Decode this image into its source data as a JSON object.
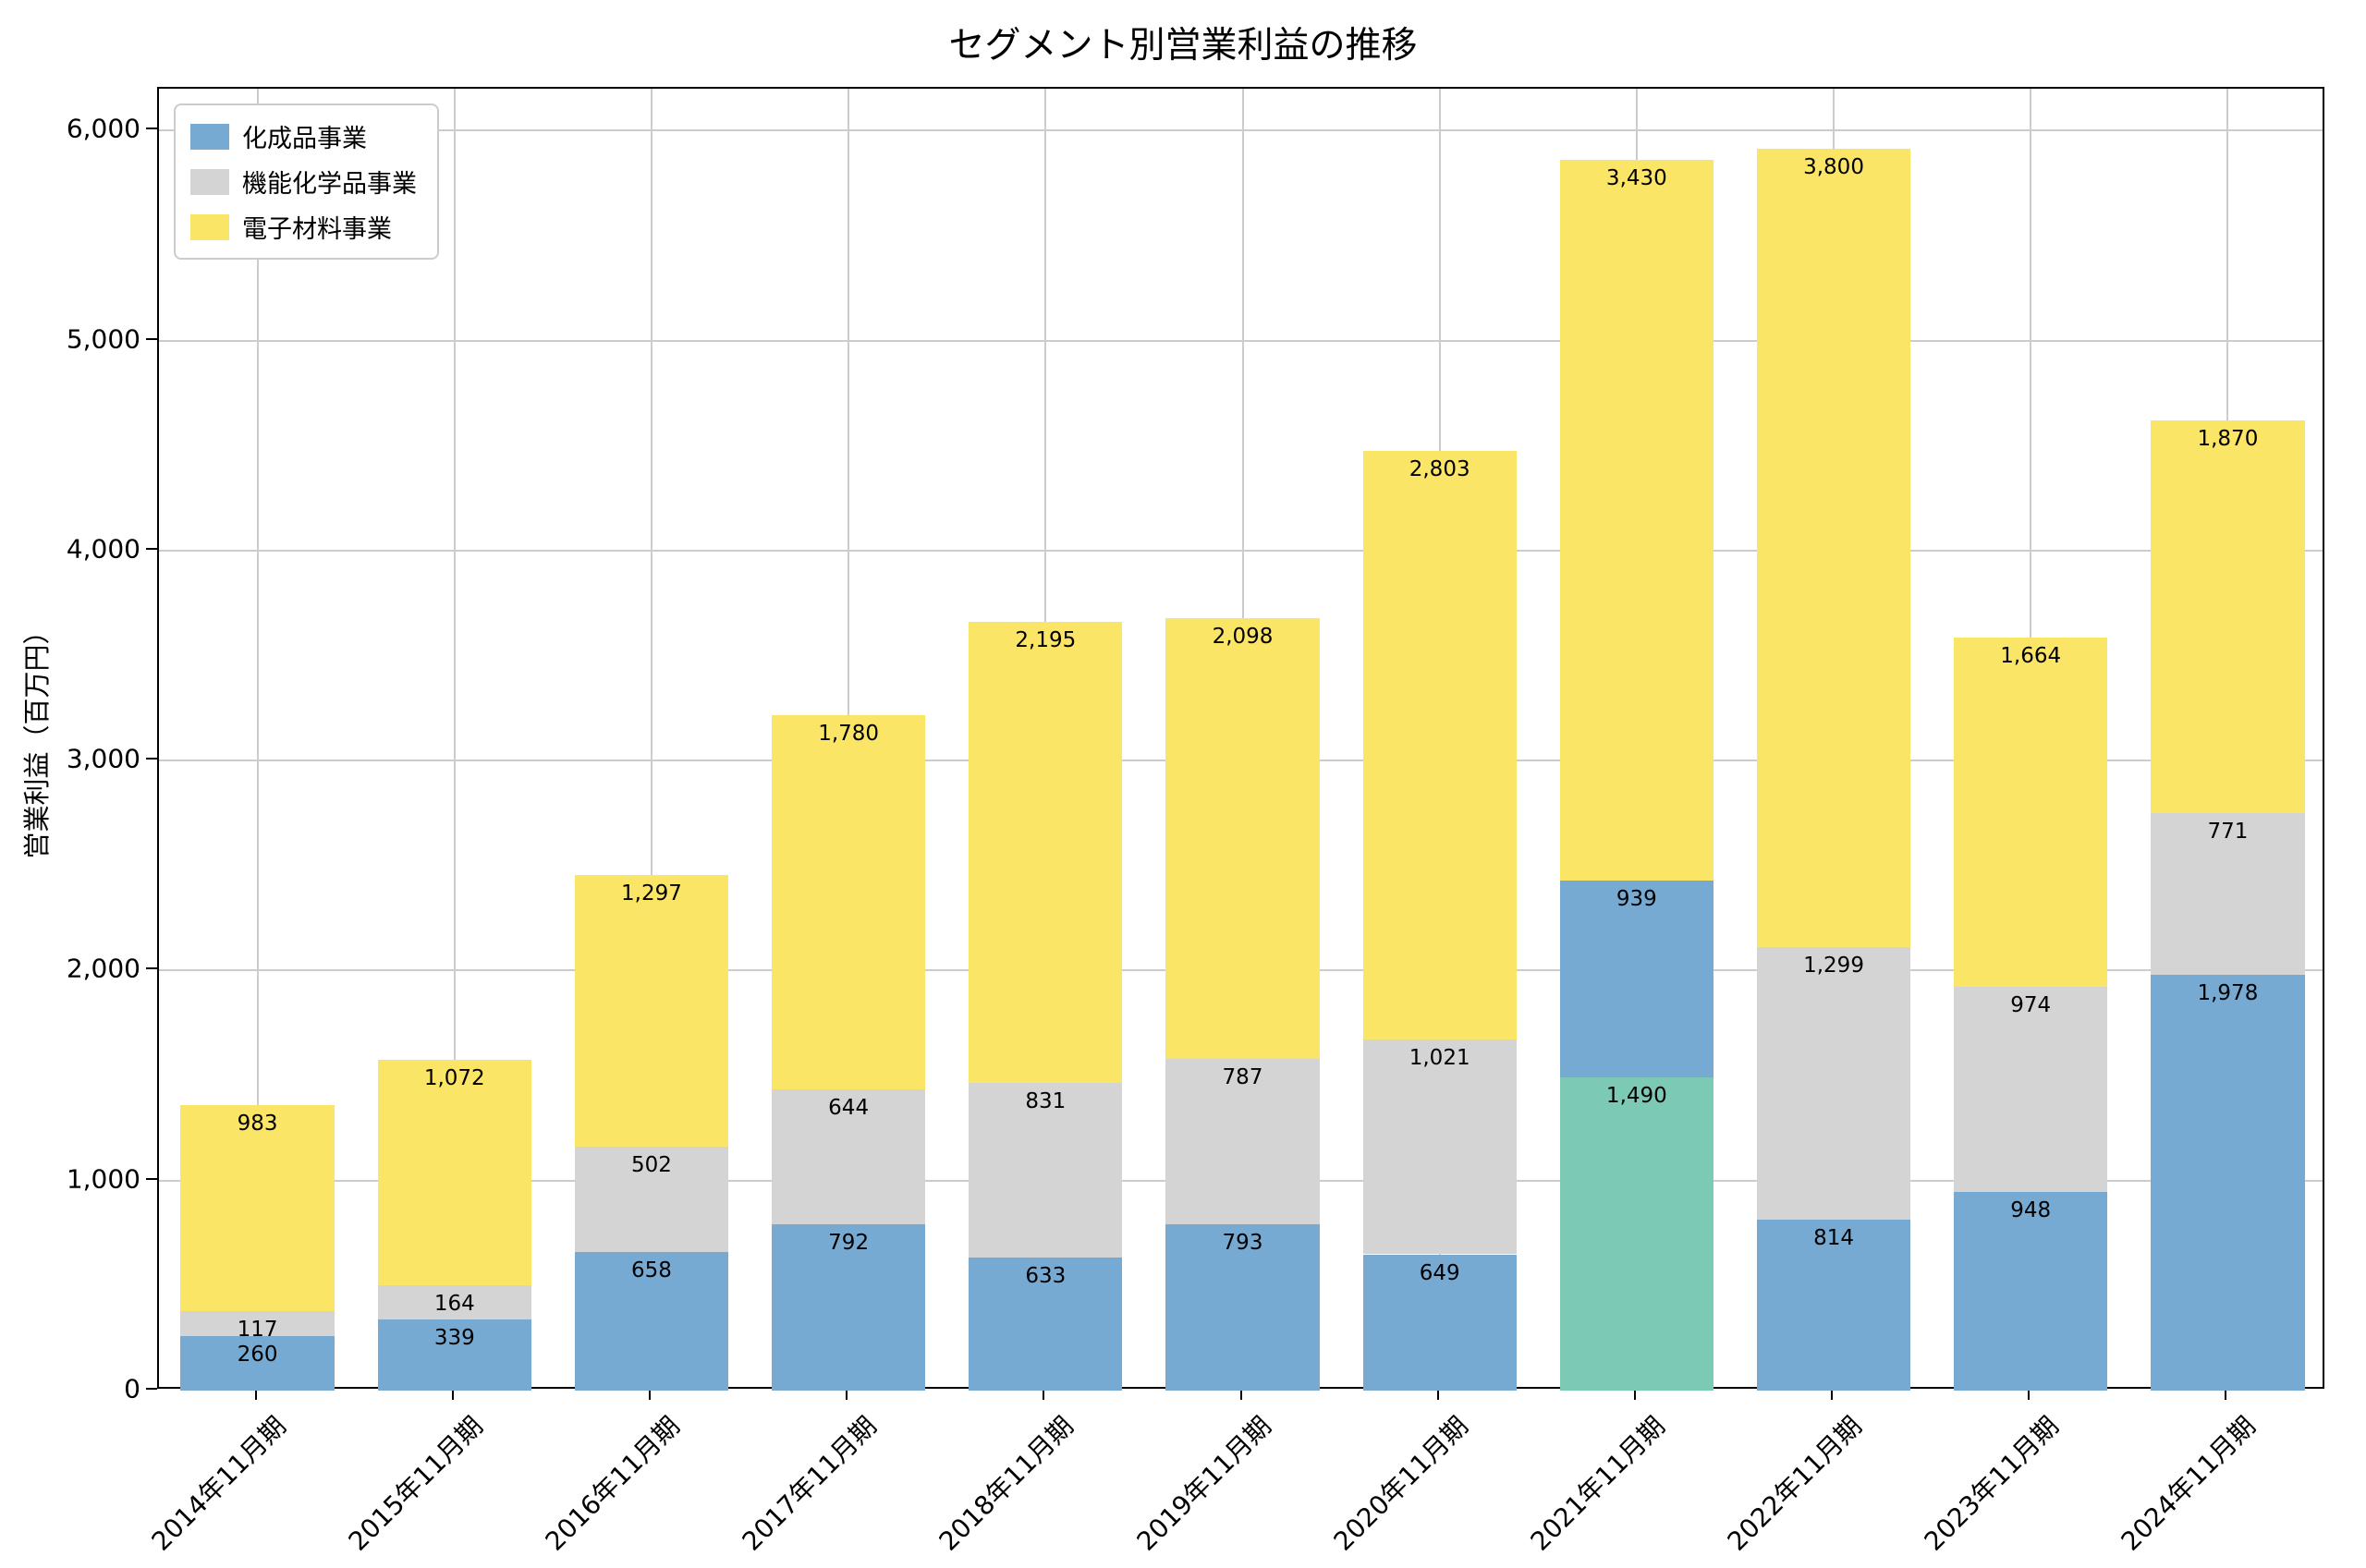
{
  "chart_data": {
    "type": "stacked-bar",
    "title": "セグメント別営業利益の推移",
    "ylabel": "営業利益（百万円）",
    "xlabel": "",
    "ylim": [
      0,
      6200
    ],
    "yticks": [
      0,
      1000,
      2000,
      3000,
      4000,
      5000,
      6000
    ],
    "grid": true,
    "legend_position": "upper-left",
    "colors": {
      "blue": "#76aad2",
      "gray": "#d4d4d4",
      "yellow": "#fbe566",
      "teal": "#7cc9b6"
    },
    "legend": [
      {
        "label": "化成品事業",
        "color": "blue"
      },
      {
        "label": "機能化学品事業",
        "color": "gray"
      },
      {
        "label": "電子材料事業",
        "color": "yellow"
      }
    ],
    "categories": [
      "2014年11月期",
      "2015年11月期",
      "2016年11月期",
      "2017年11月期",
      "2018年11月期",
      "2019年11月期",
      "2020年11月期",
      "2021年11月期",
      "2022年11月期",
      "2023年11月期",
      "2024年11月期"
    ],
    "bars": [
      {
        "category": "2014年11月期",
        "segments": [
          {
            "value": 260,
            "color": "blue"
          },
          {
            "value": 117,
            "color": "gray"
          },
          {
            "value": 983,
            "color": "yellow"
          }
        ]
      },
      {
        "category": "2015年11月期",
        "segments": [
          {
            "value": 339,
            "color": "blue"
          },
          {
            "value": 164,
            "color": "gray"
          },
          {
            "value": 1072,
            "color": "yellow"
          }
        ]
      },
      {
        "category": "2016年11月期",
        "segments": [
          {
            "value": 658,
            "color": "blue"
          },
          {
            "value": 502,
            "color": "gray"
          },
          {
            "value": 1297,
            "color": "yellow"
          }
        ]
      },
      {
        "category": "2017年11月期",
        "segments": [
          {
            "value": 792,
            "color": "blue"
          },
          {
            "value": 644,
            "color": "gray"
          },
          {
            "value": 1780,
            "color": "yellow"
          }
        ]
      },
      {
        "category": "2018年11月期",
        "segments": [
          {
            "value": 633,
            "color": "blue"
          },
          {
            "value": 831,
            "color": "gray"
          },
          {
            "value": 2195,
            "color": "yellow"
          }
        ]
      },
      {
        "category": "2019年11月期",
        "segments": [
          {
            "value": 793,
            "color": "blue"
          },
          {
            "value": 787,
            "color": "gray"
          },
          {
            "value": 2098,
            "color": "yellow"
          }
        ]
      },
      {
        "category": "2020年11月期",
        "segments": [
          {
            "value": 649,
            "color": "blue"
          },
          {
            "value": 1021,
            "color": "gray"
          },
          {
            "value": 2803,
            "color": "yellow"
          }
        ]
      },
      {
        "category": "2021年11月期",
        "segments": [
          {
            "value": 1490,
            "color": "teal"
          },
          {
            "value": 939,
            "color": "blue"
          },
          {
            "value": 3430,
            "color": "yellow"
          }
        ]
      },
      {
        "category": "2022年11月期",
        "segments": [
          {
            "value": 814,
            "color": "blue"
          },
          {
            "value": 1299,
            "color": "gray"
          },
          {
            "value": 3800,
            "color": "yellow"
          }
        ]
      },
      {
        "category": "2023年11月期",
        "segments": [
          {
            "value": 948,
            "color": "blue"
          },
          {
            "value": 974,
            "color": "gray"
          },
          {
            "value": 1664,
            "color": "yellow"
          }
        ]
      },
      {
        "category": "2024年11月期",
        "segments": [
          {
            "value": 1978,
            "color": "blue"
          },
          {
            "value": 771,
            "color": "gray"
          },
          {
            "value": 1870,
            "color": "yellow"
          }
        ]
      }
    ]
  }
}
